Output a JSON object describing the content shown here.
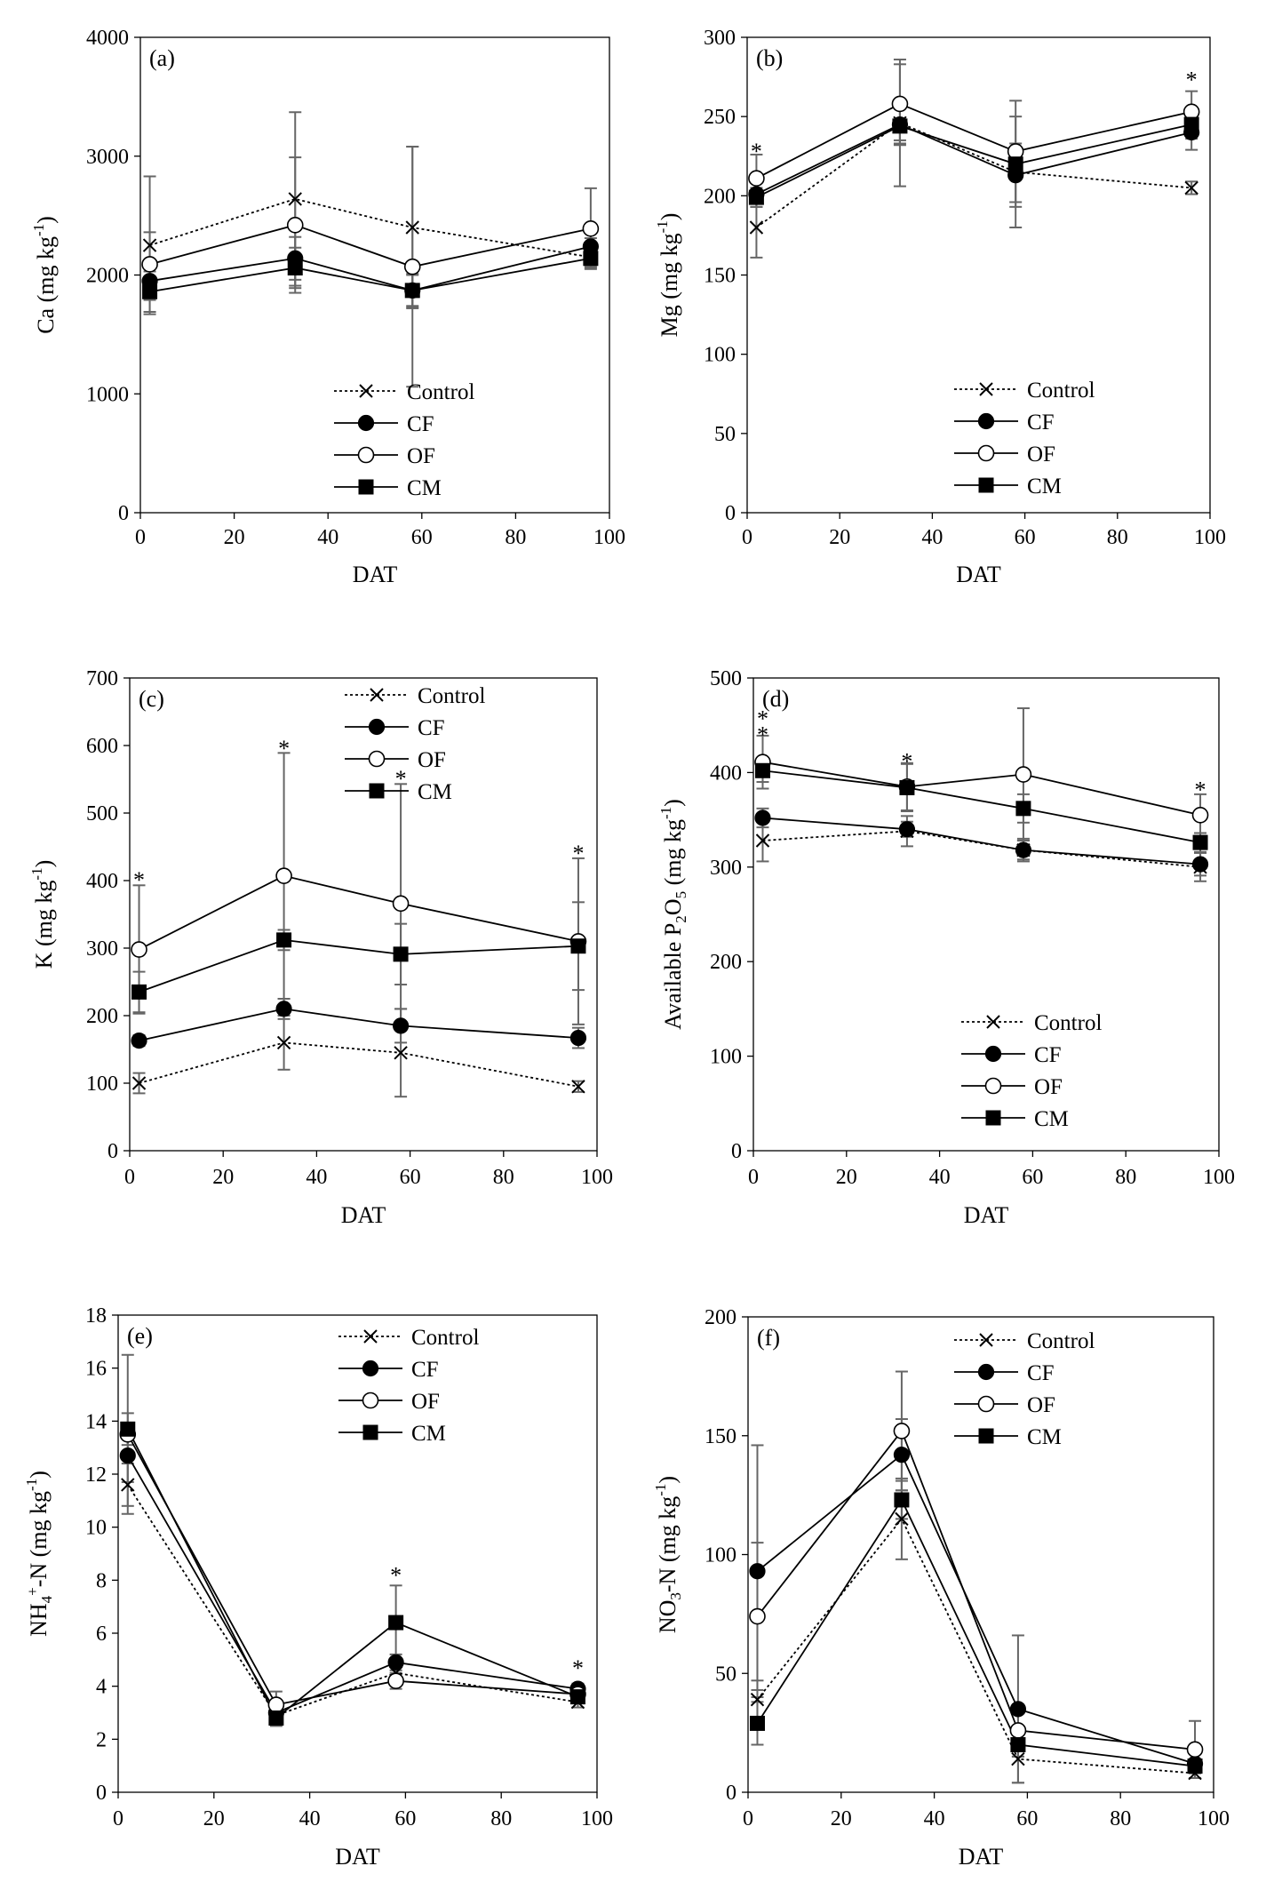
{
  "figure": {
    "xlabel": "DAT",
    "legend_names": [
      "Control",
      "CF",
      "OF",
      "CM"
    ],
    "x_ticks": [
      "0",
      "20",
      "40",
      "60",
      "80",
      "100"
    ]
  },
  "chart_data": [
    {
      "type": "line",
      "panel": "(a)",
      "title": "(a)",
      "ylabel": "Ca (mg kg-1)",
      "ylabel_main": "Ca (mg kg",
      "ylabel_sup": "-1",
      "ylabel_tail": ")",
      "xlabel": "DAT",
      "xlim": [
        0,
        100
      ],
      "ylim": [
        0,
        4000
      ],
      "x_ticks": [
        0,
        20,
        40,
        60,
        80,
        100
      ],
      "y_ticks": [
        0,
        1000,
        2000,
        3000,
        4000
      ],
      "x": [
        2,
        33,
        58,
        96
      ],
      "legend_position": "bottom-right",
      "series": [
        {
          "name": "Control",
          "values": [
            2250,
            2640,
            2400,
            2150
          ],
          "err": [
            580,
            730,
            680,
            90
          ]
        },
        {
          "name": "CF",
          "values": [
            1950,
            2140,
            1870,
            2240
          ],
          "err": [
            160,
            180,
            130,
            70
          ]
        },
        {
          "name": "OF",
          "values": [
            2090,
            2420,
            2070,
            2390
          ],
          "err": [
            270,
            570,
            1010,
            340
          ]
        },
        {
          "name": "CM",
          "values": [
            1860,
            2060,
            1870,
            2140
          ],
          "err": [
            170,
            170,
            140,
            70
          ]
        }
      ],
      "significance": []
    },
    {
      "type": "line",
      "panel": "(b)",
      "title": "(b)",
      "ylabel": "Mg (mg kg-1)",
      "ylabel_main": "Mg (mg kg",
      "ylabel_sup": "-1",
      "ylabel_tail": ")",
      "xlabel": "DAT",
      "xlim": [
        0,
        100
      ],
      "ylim": [
        0,
        300
      ],
      "x_ticks": [
        0,
        20,
        40,
        60,
        80,
        100
      ],
      "y_ticks": [
        0,
        50,
        100,
        150,
        200,
        250,
        300
      ],
      "x": [
        2,
        33,
        58,
        96
      ],
      "legend_position": "bottom-right",
      "series": [
        {
          "name": "Control",
          "values": [
            180,
            246,
            215,
            205
          ],
          "err": [
            19,
            40,
            35,
            4
          ]
        },
        {
          "name": "CF",
          "values": [
            201,
            245,
            213,
            240
          ],
          "err": [
            8,
            10,
            20,
            11
          ]
        },
        {
          "name": "OF",
          "values": [
            211,
            258,
            228,
            253
          ],
          "err": [
            15,
            25,
            32,
            13
          ]
        },
        {
          "name": "CM",
          "values": [
            199,
            244,
            220,
            245
          ],
          "err": [
            6,
            12,
            8,
            9
          ]
        }
      ],
      "significance": [
        {
          "label": "*",
          "x": 2,
          "y": 230
        },
        {
          "label": "*",
          "x": 96,
          "y": 275
        }
      ]
    },
    {
      "type": "line",
      "panel": "(c)",
      "title": "(c)",
      "ylabel": "K (mg kg-1)",
      "ylabel_main": "K (mg kg",
      "ylabel_sup": "-1",
      "ylabel_tail": ")",
      "xlabel": "DAT",
      "xlim": [
        0,
        100
      ],
      "ylim": [
        0,
        700
      ],
      "x_ticks": [
        0,
        20,
        40,
        60,
        80,
        100
      ],
      "y_ticks": [
        0,
        100,
        200,
        300,
        400,
        500,
        600,
        700
      ],
      "x": [
        2,
        33,
        58,
        96
      ],
      "legend_position": "top-right",
      "series": [
        {
          "name": "Control",
          "values": [
            100,
            160,
            145,
            95
          ],
          "err": [
            15,
            40,
            65,
            8
          ]
        },
        {
          "name": "CF",
          "values": [
            163,
            210,
            185,
            167
          ],
          "err": [
            8,
            15,
            25,
            15
          ]
        },
        {
          "name": "OF",
          "values": [
            298,
            407,
            366,
            310
          ],
          "err": [
            95,
            182,
            177,
            123
          ]
        },
        {
          "name": "CM",
          "values": [
            235,
            312,
            291,
            303
          ],
          "err": [
            30,
            15,
            45,
            65
          ]
        }
      ],
      "significance": [
        {
          "label": "*",
          "x": 2,
          "y": 405
        },
        {
          "label": "*",
          "x": 33,
          "y": 600
        },
        {
          "label": "*",
          "x": 58,
          "y": 555
        },
        {
          "label": "*",
          "x": 96,
          "y": 445
        }
      ]
    },
    {
      "type": "line",
      "panel": "(d)",
      "title": "(d)",
      "ylabel": "Available P2O5 (mg kg-1)",
      "ylabel_main": "Available P",
      "ylabel_sub1": "2",
      "ylabel_mid": "O",
      "ylabel_sub2": "5",
      "ylabel_rest": " (mg kg",
      "ylabel_sup": "-1",
      "ylabel_tail": ")",
      "xlabel": "DAT",
      "xlim": [
        0,
        100
      ],
      "ylim": [
        0,
        500
      ],
      "x_ticks": [
        0,
        20,
        40,
        60,
        80,
        100
      ],
      "y_ticks": [
        0,
        100,
        200,
        300,
        400,
        500
      ],
      "x": [
        2,
        33,
        58,
        96
      ],
      "legend_position": "bottom-right",
      "series": [
        {
          "name": "Control",
          "values": [
            328,
            338,
            318,
            300
          ],
          "err": [
            22,
            16,
            12,
            15
          ]
        },
        {
          "name": "CF",
          "values": [
            352,
            340,
            318,
            303
          ],
          "err": [
            10,
            8,
            10,
            12
          ]
        },
        {
          "name": "OF",
          "values": [
            411,
            385,
            398,
            355
          ],
          "err": [
            28,
            25,
            70,
            22
          ]
        },
        {
          "name": "CM",
          "values": [
            402,
            384,
            362,
            326
          ],
          "err": [
            12,
            25,
            15,
            10
          ]
        }
      ],
      "significance": [
        {
          "label": "*",
          "x": 2,
          "y": 443
        },
        {
          "label": "*",
          "x": 2,
          "y": 460
        },
        {
          "label": "*",
          "x": 33,
          "y": 415
        },
        {
          "label": "*",
          "x": 96,
          "y": 385
        }
      ]
    },
    {
      "type": "line",
      "panel": "(e)",
      "title": "(e)",
      "ylabel": "NH4+-N (mg kg-1)",
      "ylabel_main": "NH",
      "ylabel_sub1": "4",
      "ylabel_sup1": "+",
      "ylabel_rest": "-N (mg kg",
      "ylabel_sup": "-1",
      "ylabel_tail": ")",
      "xlabel": "DAT",
      "xlim": [
        0,
        100
      ],
      "ylim": [
        0,
        18
      ],
      "x_ticks": [
        0,
        20,
        40,
        60,
        80,
        100
      ],
      "y_ticks": [
        0,
        2,
        4,
        6,
        8,
        10,
        12,
        14,
        16,
        18
      ],
      "x": [
        2,
        33,
        58,
        96
      ],
      "legend_position": "top-right",
      "series": [
        {
          "name": "Control",
          "values": [
            11.6,
            2.9,
            4.5,
            3.4
          ],
          "err": [
            0.8,
            0.3,
            0.3,
            0.2
          ]
        },
        {
          "name": "CF",
          "values": [
            12.7,
            3.0,
            4.9,
            3.9
          ],
          "err": [
            1.0,
            0.3,
            0.3,
            0.2
          ]
        },
        {
          "name": "OF",
          "values": [
            13.5,
            3.3,
            4.2,
            3.7
          ],
          "err": [
            3.0,
            0.5,
            0.3,
            0.3
          ]
        },
        {
          "name": "CM",
          "values": [
            13.7,
            2.8,
            6.4,
            3.6
          ],
          "err": [
            0.6,
            0.3,
            1.4,
            0.2
          ]
        }
      ],
      "significance": [
        {
          "label": "*",
          "x": 58,
          "y": 8.3
        },
        {
          "label": "*",
          "x": 96,
          "y": 4.8
        }
      ]
    },
    {
      "type": "line",
      "panel": "(f)",
      "title": "(f)",
      "ylabel": "NO3--N (mg kg-1)",
      "ylabel_main": "NO",
      "ylabel_sub1": "3",
      "ylabel_rest": "-N (mg kg",
      "ylabel_sup": "-1",
      "ylabel_tail": ")",
      "xlabel": "DAT",
      "xlim": [
        0,
        100
      ],
      "ylim": [
        0,
        200
      ],
      "x_ticks": [
        0,
        20,
        40,
        60,
        80,
        100
      ],
      "y_ticks": [
        0,
        50,
        100,
        150,
        200
      ],
      "x": [
        2,
        33,
        58,
        96
      ],
      "legend_position": "top-right",
      "series": [
        {
          "name": "Control",
          "values": [
            39,
            115,
            14,
            8
          ],
          "err": [
            8,
            17,
            10,
            2
          ]
        },
        {
          "name": "CF",
          "values": [
            93,
            142,
            35,
            12
          ],
          "err": [
            53,
            15,
            31,
            4
          ]
        },
        {
          "name": "OF",
          "values": [
            74,
            152,
            26,
            18
          ],
          "err": [
            31,
            25,
            11,
            12
          ]
        },
        {
          "name": "CM",
          "values": [
            29,
            123,
            20,
            11
          ],
          "err": [
            9,
            8,
            5,
            3
          ]
        }
      ],
      "significance": []
    }
  ]
}
